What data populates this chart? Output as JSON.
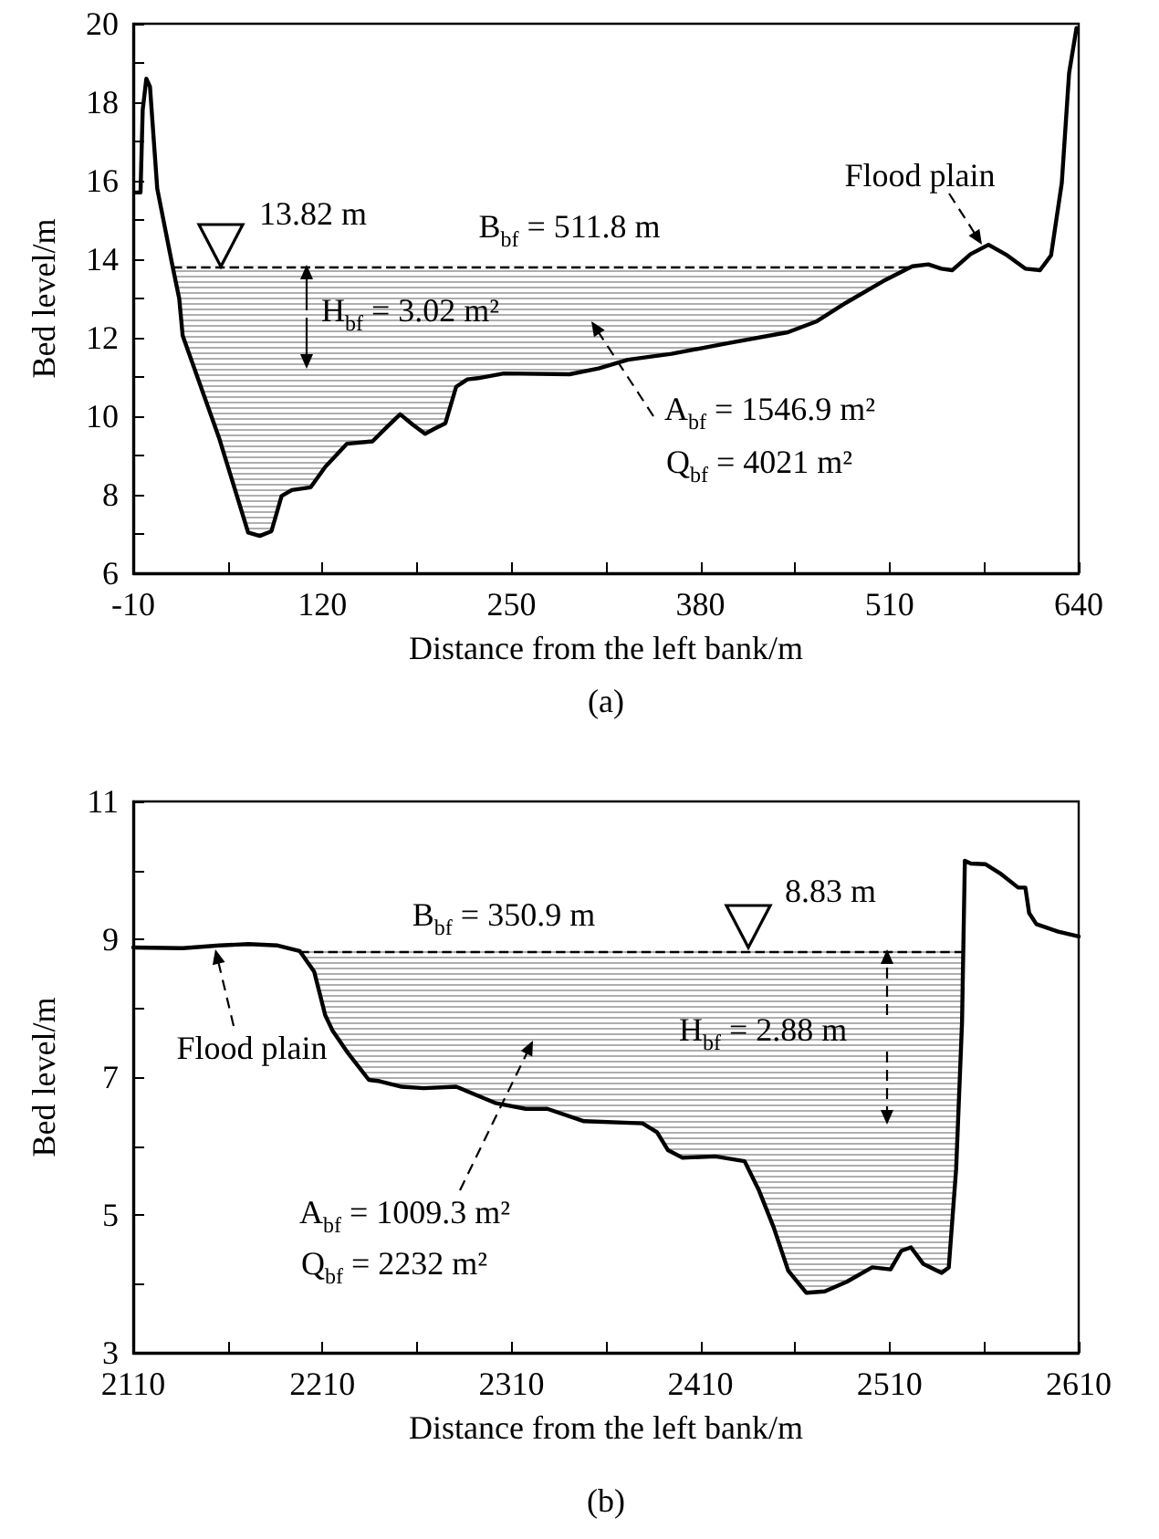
{
  "chart_data": [
    {
      "type": "line",
      "xlabel": "Distance from the left bank/m",
      "ylabel": "Bed level/m",
      "marker": "none",
      "grid": false,
      "xlim": [
        -10,
        640
      ],
      "xticks": [
        -10,
        {
          "value": 55,
          "label": null
        },
        120,
        {
          "value": 185,
          "label": null
        },
        250,
        {
          "value": 315,
          "label": null
        },
        380,
        {
          "value": 445,
          "label": null
        },
        510,
        {
          "value": 575,
          "label": null
        },
        640
      ],
      "ylim": [
        6,
        20
      ],
      "yticks": [
        6,
        {
          "value": 7,
          "label": null
        },
        8,
        {
          "value": 9,
          "label": null
        },
        10,
        {
          "value": 11,
          "label": null
        },
        12,
        {
          "value": 13,
          "label": null
        },
        14,
        {
          "value": 15,
          "label": null
        },
        16,
        {
          "value": 17,
          "label": null
        },
        18,
        {
          "value": 19,
          "label": null
        },
        20
      ],
      "series": [
        {
          "color": "#000000",
          "line_style": "solid",
          "x": [
            -8.5,
            -5,
            -3.5,
            -1,
            1.5,
            6.5,
            16.6,
            21.6,
            24,
            49,
            69,
            77,
            85,
            92,
            99,
            112,
            122,
            137,
            154.5,
            164.5,
            173.5,
            182,
            190.6,
            197,
            204.6,
            212,
            219.7,
            227,
            244.8,
            290,
            310,
            330,
            360,
            400,
            440,
            460,
            480,
            505.5,
            525.6,
            536.6,
            545.6,
            553,
            565.7,
            578,
            590.8,
            603.3,
            613.4,
            621,
            628.4,
            633.4,
            638.5
          ],
          "values": [
            15.7,
            15.7,
            17.8,
            18.6,
            18.4,
            15.8,
            13.9,
            13.0,
            12.05,
            9.45,
            7.04,
            6.95,
            7.07,
            7.97,
            8.12,
            8.19,
            8.71,
            9.3,
            9.36,
            9.73,
            10.05,
            9.79,
            9.55,
            9.68,
            9.82,
            10.75,
            10.94,
            10.97,
            11.09,
            11.07,
            11.22,
            11.44,
            11.59,
            11.87,
            12.14,
            12.42,
            12.89,
            13.44,
            13.82,
            13.87,
            13.76,
            13.72,
            14.13,
            14.37,
            14.1,
            13.76,
            13.72,
            14.1,
            15.95,
            18.74,
            19.89
          ]
        }
      ],
      "ref_lines": [
        {
          "axis": "y",
          "value": 13.82,
          "line_style": "dashed",
          "color": "#000000"
        }
      ],
      "annotations": [
        "13.82 m",
        "B$_{bf}$ = 511.8 m",
        "H$_{bf}$ = 3.02 m²",
        "A$_{bf}$ = 1546.9 m²",
        "Q$_{bf}$ = 4021 m²",
        "Flood plain",
        "(a)"
      ]
    },
    {
      "type": "line",
      "xlabel": "Distance from the left bank/m",
      "ylabel": "Bed level/m",
      "marker": "none",
      "grid": false,
      "xlim": [
        2110,
        2610
      ],
      "xticks": [
        2110,
        {
          "value": 2160,
          "label": null
        },
        2210,
        {
          "value": 2260,
          "label": null
        },
        2310,
        {
          "value": 2360,
          "label": null
        },
        2410,
        {
          "value": 2460,
          "label": null
        },
        2510,
        {
          "value": 2560,
          "label": null
        },
        2610
      ],
      "ylim": [
        3,
        11
      ],
      "yticks": [
        3,
        {
          "value": 4,
          "label": null
        },
        5,
        {
          "value": 6,
          "label": null
        },
        7,
        {
          "value": 8,
          "label": null
        },
        9,
        {
          "value": 10,
          "label": null
        },
        11
      ],
      "series": [
        {
          "color": "#000000",
          "line_style": "solid",
          "x": [
            2110,
            2136.2,
            2155.5,
            2171,
            2186.4,
            2198,
            2205.7,
            2211.5,
            2215.3,
            2223,
            2234.6,
            2240.4,
            2252,
            2263.5,
            2280.8,
            2302,
            2317.6,
            2329,
            2348.4,
            2379.3,
            2387,
            2392.8,
            2400.5,
            2417.9,
            2433.3,
            2441,
            2448.7,
            2456.4,
            2466,
            2475.7,
            2487.3,
            2500.8,
            2510.5,
            2516.2,
            2521.3,
            2527.8,
            2537.5,
            2541.3,
            2545.2,
            2548.3,
            2549.8,
            2552.9,
            2560.6,
            2568.3,
            2578,
            2581.8,
            2583.8,
            2587.6,
            2599.2,
            2610
          ],
          "values": [
            8.88,
            8.87,
            8.91,
            8.93,
            8.91,
            8.83,
            8.53,
            7.9,
            7.68,
            7.37,
            6.96,
            6.94,
            6.86,
            6.84,
            6.86,
            6.62,
            6.54,
            6.54,
            6.36,
            6.33,
            6.2,
            5.94,
            5.83,
            5.85,
            5.78,
            5.35,
            4.82,
            4.19,
            3.87,
            3.89,
            4.03,
            4.24,
            4.21,
            4.48,
            4.53,
            4.29,
            4.16,
            4.24,
            5.67,
            7.79,
            10.14,
            10.1,
            10.09,
            9.96,
            9.75,
            9.75,
            9.38,
            9.22,
            9.11,
            9.04
          ]
        }
      ],
      "ref_lines": [
        {
          "axis": "y",
          "value": 8.83,
          "line_style": "dashed",
          "color": "#000000"
        }
      ],
      "annotations": [
        "8.83 m",
        "B$_{bf}$ = 350.9 m",
        "H$_{bf}$ = 2.88 m",
        "A$_{bf}$ = 1009.3 m²",
        "Q$_{bf}$ = 2232 m²",
        "Flood plain",
        "(b)"
      ]
    }
  ]
}
